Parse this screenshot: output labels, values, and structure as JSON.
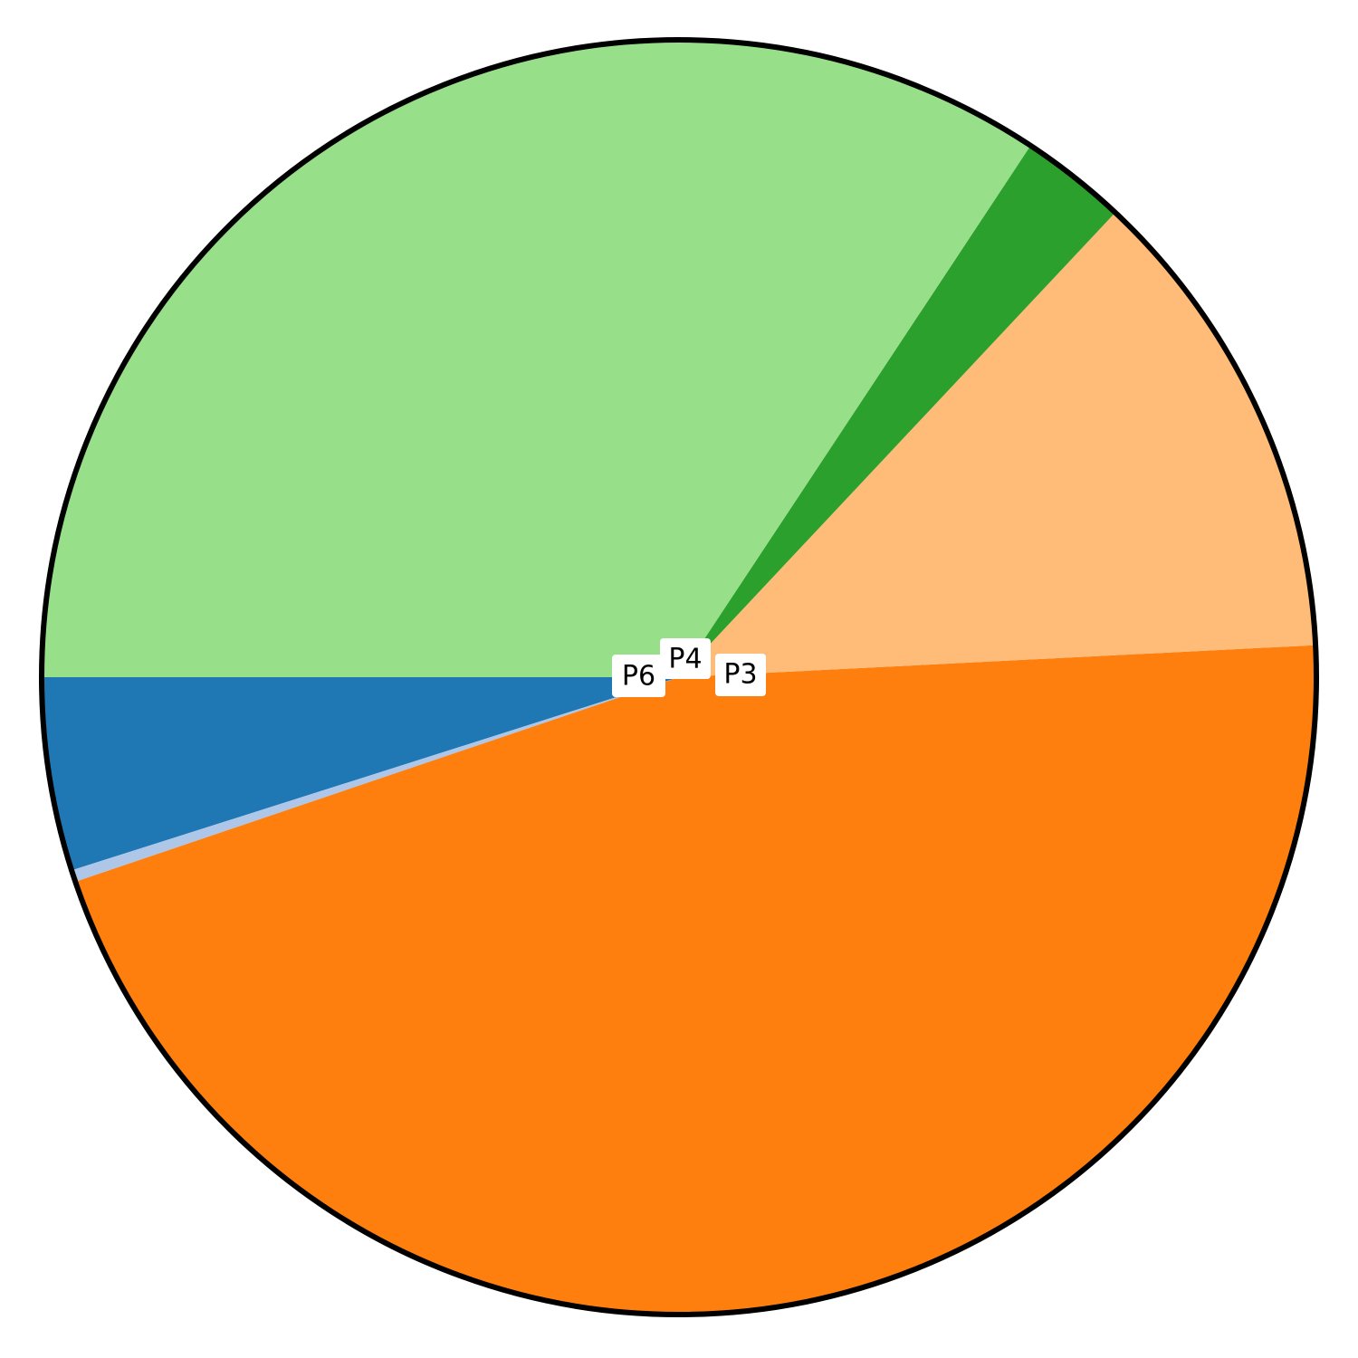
{
  "chart_data": {
    "type": "pie",
    "title": "",
    "start_angle_deg": 180,
    "direction": "counterclockwise",
    "slices": [
      {
        "label": "",
        "value": 4.9,
        "color": "#1f77b4"
      },
      {
        "label": "",
        "value": 0.3,
        "color": "#aec7e8"
      },
      {
        "label": "",
        "value": 45.6,
        "color": "#ff7f0e"
      },
      {
        "label": "",
        "value": 12.2,
        "color": "#ffbb78"
      },
      {
        "label": "",
        "value": 2.7,
        "color": "#2ca02c"
      },
      {
        "label": "",
        "value": 34.3,
        "color": "#98df8a"
      }
    ],
    "annotations": [
      {
        "text": "P6",
        "color": "#000000"
      },
      {
        "text": "P4",
        "color": "#000000"
      },
      {
        "text": "P3",
        "color": "#000000"
      }
    ],
    "outline_color": "#000000"
  }
}
